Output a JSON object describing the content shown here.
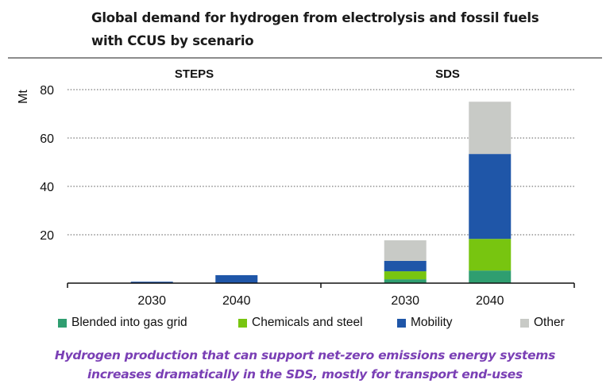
{
  "chart_data": {
    "type": "bar",
    "stacked": true,
    "title": "Global demand for hydrogen from electrolysis and fossil fuels with CCUS by scenario",
    "title_lines": [
      "Global demand for hydrogen from electrolysis and fossil fuels",
      "with CCUS by scenario"
    ],
    "ylabel": "Mt",
    "xlabel": "",
    "ylim": [
      0,
      80
    ],
    "yticks": [
      20,
      40,
      60,
      80
    ],
    "grid": true,
    "legend_position": "bottom",
    "panels": [
      {
        "name": "STEPS",
        "categories": [
          "2030",
          "2040"
        ],
        "series": [
          {
            "name": "Blended into gas grid",
            "values": [
              0,
              0
            ]
          },
          {
            "name": "Chemicals and steel",
            "values": [
              0,
              0
            ]
          },
          {
            "name": "Mobility",
            "values": [
              0.6,
              3.3
            ]
          },
          {
            "name": "Other",
            "values": [
              0,
              0
            ]
          }
        ]
      },
      {
        "name": "SDS",
        "categories": [
          "2030",
          "2040"
        ],
        "series": [
          {
            "name": "Blended into gas grid",
            "values": [
              1.6,
              5.2
            ]
          },
          {
            "name": "Chemicals and steel",
            "values": [
              3.3,
              13.1
            ]
          },
          {
            "name": "Mobility",
            "values": [
              4.3,
              35.1
            ]
          },
          {
            "name": "Other",
            "values": [
              8.5,
              21.6
            ]
          }
        ]
      }
    ],
    "legend": [
      {
        "name": "Blended into gas grid",
        "color": "#2f9e70"
      },
      {
        "name": "Chemicals and steel",
        "color": "#78c510"
      },
      {
        "name": "Mobility",
        "color": "#1f56a8"
      },
      {
        "name": "Other",
        "color": "#c8cac6"
      }
    ]
  },
  "caption": {
    "line1": "Hydrogen production that can support net-zero emissions energy systems",
    "line2": "increases dramatically in the SDS, mostly for transport end-uses"
  }
}
